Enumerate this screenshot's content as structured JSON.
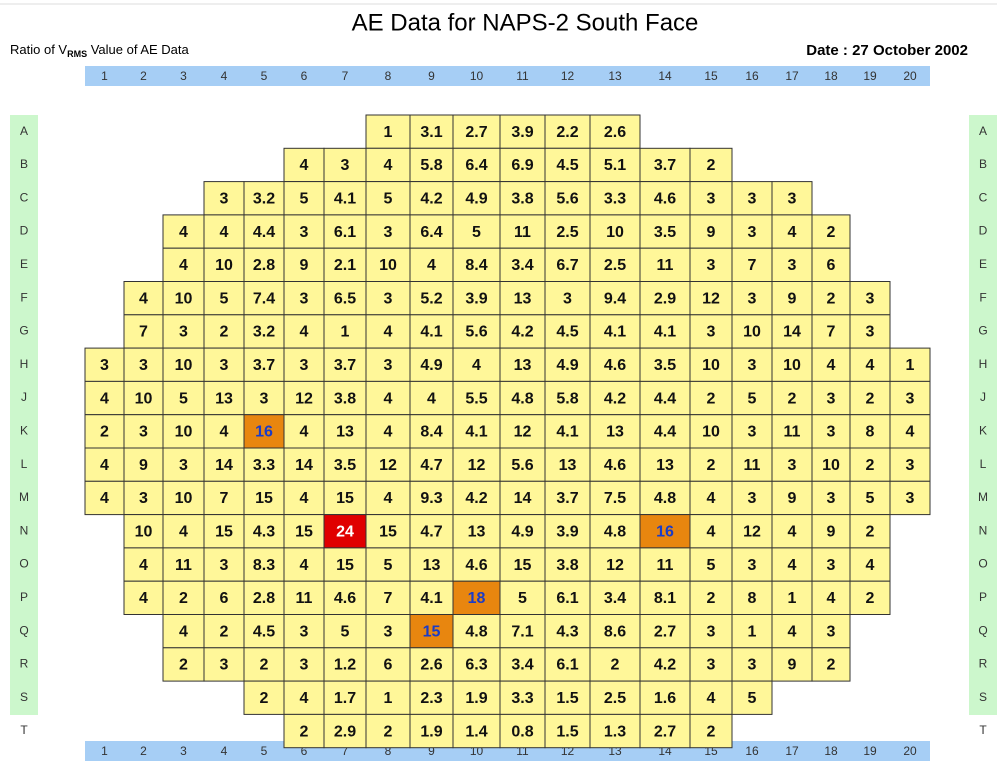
{
  "header": {
    "title": "AE Data for NAPS-2 South Face",
    "subtitle_parts": [
      "Ratio of V",
      "RMS",
      " Value of AE Data"
    ],
    "date": "Date : 27 October 2002"
  },
  "columns": [
    1,
    2,
    3,
    4,
    5,
    6,
    7,
    8,
    9,
    10,
    11,
    12,
    13,
    14,
    15,
    16,
    17,
    18,
    19,
    20
  ],
  "rows": [
    {
      "label": "A",
      "values": [
        null,
        null,
        null,
        null,
        null,
        null,
        null,
        1,
        3.1,
        2.7,
        3.9,
        2.2,
        2.6,
        null,
        null,
        null,
        null,
        null,
        null,
        null
      ]
    },
    {
      "label": "B",
      "values": [
        null,
        null,
        null,
        null,
        null,
        4,
        3,
        4,
        5.8,
        6.4,
        6.9,
        4.5,
        5.1,
        3.7,
        2,
        null,
        null,
        null,
        null,
        null
      ]
    },
    {
      "label": "C",
      "values": [
        null,
        null,
        null,
        3,
        3.2,
        5,
        4.1,
        5,
        4.2,
        4.9,
        3.8,
        5.6,
        3.3,
        4.6,
        3,
        3,
        3,
        null,
        null,
        null
      ]
    },
    {
      "label": "D",
      "values": [
        null,
        null,
        4,
        4,
        4.4,
        3,
        6.1,
        3,
        6.4,
        5,
        11,
        2.5,
        10,
        3.5,
        9,
        3,
        4,
        2,
        null,
        null
      ]
    },
    {
      "label": "E",
      "values": [
        null,
        null,
        4,
        10,
        2.8,
        9,
        2.1,
        10,
        4,
        8.4,
        3.4,
        6.7,
        2.5,
        11,
        3,
        7,
        3,
        6,
        null,
        null
      ]
    },
    {
      "label": "F",
      "values": [
        null,
        4,
        10,
        5,
        7.4,
        3,
        6.5,
        3,
        5.2,
        3.9,
        13,
        3,
        9.4,
        2.9,
        12,
        3,
        9,
        2,
        3,
        null
      ]
    },
    {
      "label": "G",
      "values": [
        null,
        7,
        3,
        2,
        3.2,
        4,
        1,
        4,
        4.1,
        5.6,
        4.2,
        4.5,
        4.1,
        4.1,
        3,
        10,
        14,
        7,
        3,
        null
      ]
    },
    {
      "label": "H",
      "values": [
        3,
        3,
        10,
        3,
        3.7,
        3,
        3.7,
        3,
        4.9,
        4,
        13,
        4.9,
        4.6,
        3.5,
        10,
        3,
        10,
        4,
        4,
        1
      ]
    },
    {
      "label": "J",
      "values": [
        4,
        10,
        5,
        13,
        3,
        12,
        3.8,
        4,
        4,
        5.5,
        4.8,
        5.8,
        4.2,
        4.4,
        2,
        5,
        2,
        3,
        2,
        3
      ]
    },
    {
      "label": "K",
      "values": [
        2,
        3,
        10,
        4,
        16,
        4,
        13,
        4,
        8.4,
        4.1,
        12,
        4.1,
        13,
        4.4,
        10,
        3,
        11,
        3,
        8,
        4
      ]
    },
    {
      "label": "L",
      "values": [
        4,
        9,
        3,
        14,
        3.3,
        14,
        3.5,
        12,
        4.7,
        12,
        5.6,
        13,
        4.6,
        13,
        2,
        11,
        3,
        10,
        2,
        3
      ]
    },
    {
      "label": "M",
      "values": [
        4,
        3,
        10,
        7,
        15,
        4,
        15,
        4,
        9.3,
        4.2,
        14,
        3.7,
        7.5,
        4.8,
        4,
        3,
        9,
        3,
        5,
        3
      ]
    },
    {
      "label": "N",
      "values": [
        null,
        10,
        4,
        15,
        4.3,
        15,
        24,
        15,
        4.7,
        13,
        4.9,
        3.9,
        4.8,
        16,
        4,
        12,
        4,
        9,
        2,
        null
      ]
    },
    {
      "label": "O",
      "values": [
        null,
        4,
        11,
        3,
        8.3,
        4,
        15,
        5,
        13,
        4.6,
        15,
        3.8,
        12,
        11,
        5,
        3,
        4,
        3,
        4,
        null
      ]
    },
    {
      "label": "P",
      "values": [
        null,
        4,
        2,
        6,
        2.8,
        11,
        4.6,
        7,
        4.1,
        18,
        5,
        6.1,
        3.4,
        8.1,
        2,
        8,
        1,
        4,
        2,
        null
      ]
    },
    {
      "label": "Q",
      "values": [
        null,
        null,
        4,
        2,
        4.5,
        3,
        5,
        3,
        15,
        4.8,
        7.1,
        4.3,
        8.6,
        2.7,
        3,
        1,
        4,
        3,
        null,
        null
      ]
    },
    {
      "label": "R",
      "values": [
        null,
        null,
        2,
        3,
        2,
        3,
        1.2,
        6,
        2.6,
        6.3,
        3.4,
        6.1,
        2,
        4.2,
        3,
        3,
        9,
        2,
        null,
        null
      ]
    },
    {
      "label": "S",
      "values": [
        null,
        null,
        null,
        null,
        2,
        4,
        1.7,
        1,
        2.3,
        1.9,
        3.3,
        1.5,
        2.5,
        1.6,
        4,
        5,
        null,
        null,
        null,
        null
      ]
    },
    {
      "label": "T",
      "values": [
        null,
        null,
        null,
        null,
        null,
        2,
        2.9,
        2,
        1.9,
        1.4,
        0.8,
        1.5,
        1.3,
        2.7,
        2,
        null,
        null,
        null,
        null,
        null
      ]
    }
  ],
  "cell_color": "#fff799",
  "highlights": [
    {
      "row": 9,
      "col": 4,
      "fill": "#e8860f",
      "text": "#1a3cc8"
    },
    {
      "row": 12,
      "col": 6,
      "fill": "#e00000",
      "text": "#ffffff"
    },
    {
      "row": 12,
      "col": 13,
      "fill": "#e8860f",
      "text": "#1a3cc8"
    },
    {
      "row": 14,
      "col": 9,
      "fill": "#e8860f",
      "text": "#1a3cc8"
    },
    {
      "row": 15,
      "col": 8,
      "fill": "#e8860f",
      "text": "#1a3cc8"
    }
  ]
}
